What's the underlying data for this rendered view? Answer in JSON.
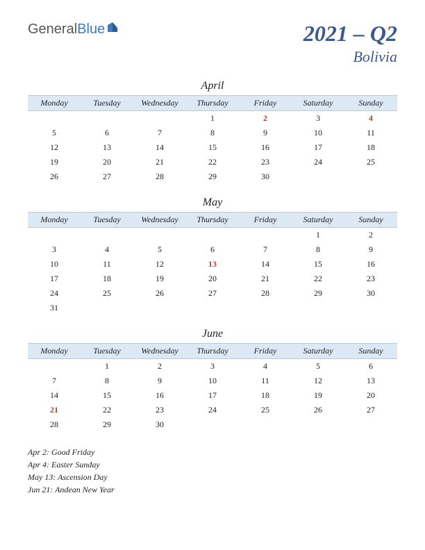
{
  "logo": {
    "general": "General",
    "blue": "Blue"
  },
  "title": {
    "main": "2021 – Q2",
    "sub": "Bolivia"
  },
  "day_headers": [
    "Monday",
    "Tuesday",
    "Wednesday",
    "Thursday",
    "Friday",
    "Saturday",
    "Sunday"
  ],
  "colors": {
    "header_bg": "#dde8f5",
    "header_border": "#b8c8dd",
    "title_color": "#3b5a8a",
    "holiday_color": "#c0392b",
    "logo_blue": "#3b7bbf",
    "logo_gray": "#555555"
  },
  "months": [
    {
      "name": "April",
      "weeks": [
        [
          null,
          null,
          null,
          {
            "d": 1
          },
          {
            "d": 2,
            "h": true
          },
          {
            "d": 3
          },
          {
            "d": 4,
            "h": true
          }
        ],
        [
          {
            "d": 5
          },
          {
            "d": 6
          },
          {
            "d": 7
          },
          {
            "d": 8
          },
          {
            "d": 9
          },
          {
            "d": 10
          },
          {
            "d": 11
          }
        ],
        [
          {
            "d": 12
          },
          {
            "d": 13
          },
          {
            "d": 14
          },
          {
            "d": 15
          },
          {
            "d": 16
          },
          {
            "d": 17
          },
          {
            "d": 18
          }
        ],
        [
          {
            "d": 19
          },
          {
            "d": 20
          },
          {
            "d": 21
          },
          {
            "d": 22
          },
          {
            "d": 23
          },
          {
            "d": 24
          },
          {
            "d": 25
          }
        ],
        [
          {
            "d": 26
          },
          {
            "d": 27
          },
          {
            "d": 28
          },
          {
            "d": 29
          },
          {
            "d": 30
          },
          null,
          null
        ]
      ]
    },
    {
      "name": "May",
      "weeks": [
        [
          null,
          null,
          null,
          null,
          null,
          {
            "d": 1
          },
          {
            "d": 2
          }
        ],
        [
          {
            "d": 3
          },
          {
            "d": 4
          },
          {
            "d": 5
          },
          {
            "d": 6
          },
          {
            "d": 7
          },
          {
            "d": 8
          },
          {
            "d": 9
          }
        ],
        [
          {
            "d": 10
          },
          {
            "d": 11
          },
          {
            "d": 12
          },
          {
            "d": 13,
            "h": true
          },
          {
            "d": 14
          },
          {
            "d": 15
          },
          {
            "d": 16
          }
        ],
        [
          {
            "d": 17
          },
          {
            "d": 18
          },
          {
            "d": 19
          },
          {
            "d": 20
          },
          {
            "d": 21
          },
          {
            "d": 22
          },
          {
            "d": 23
          }
        ],
        [
          {
            "d": 24
          },
          {
            "d": 25
          },
          {
            "d": 26
          },
          {
            "d": 27
          },
          {
            "d": 28
          },
          {
            "d": 29
          },
          {
            "d": 30
          }
        ],
        [
          {
            "d": 31
          },
          null,
          null,
          null,
          null,
          null,
          null
        ]
      ]
    },
    {
      "name": "June",
      "weeks": [
        [
          null,
          {
            "d": 1
          },
          {
            "d": 2
          },
          {
            "d": 3
          },
          {
            "d": 4
          },
          {
            "d": 5
          },
          {
            "d": 6
          }
        ],
        [
          {
            "d": 7
          },
          {
            "d": 8
          },
          {
            "d": 9
          },
          {
            "d": 10
          },
          {
            "d": 11
          },
          {
            "d": 12
          },
          {
            "d": 13
          }
        ],
        [
          {
            "d": 14
          },
          {
            "d": 15
          },
          {
            "d": 16
          },
          {
            "d": 17
          },
          {
            "d": 18
          },
          {
            "d": 19
          },
          {
            "d": 20
          }
        ],
        [
          {
            "d": 21,
            "h": true
          },
          {
            "d": 22
          },
          {
            "d": 23
          },
          {
            "d": 24
          },
          {
            "d": 25
          },
          {
            "d": 26
          },
          {
            "d": 27
          }
        ],
        [
          {
            "d": 28
          },
          {
            "d": 29
          },
          {
            "d": 30
          },
          null,
          null,
          null,
          null
        ]
      ]
    }
  ],
  "holidays": [
    "Apr 2: Good Friday",
    "Apr 4: Easter Sunday",
    "May 13: Ascension Day",
    "Jun 21: Andean New Year"
  ]
}
